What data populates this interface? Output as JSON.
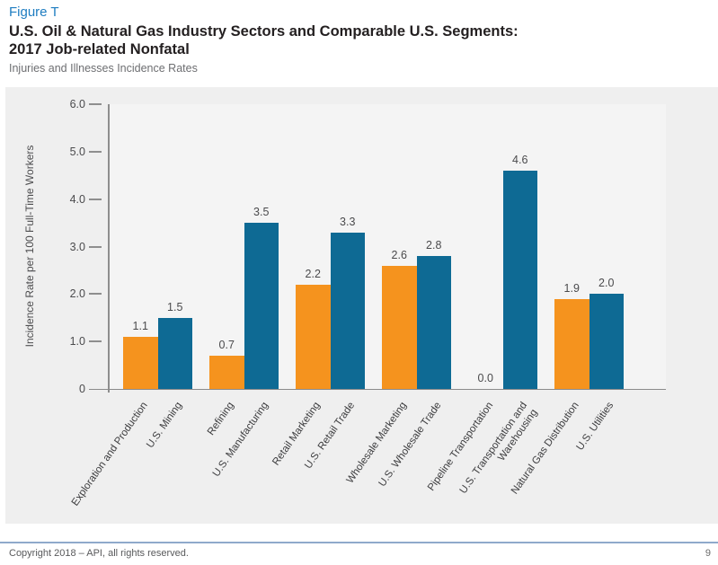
{
  "header": {
    "figure_label": "Figure T",
    "title_line1": "U.S. Oil & Natural Gas Industry Sectors and Comparable U.S. Segments:",
    "title_line2": "2017 Job-related Nonfatal",
    "subtitle": "Injuries and Illnesses Incidence Rates"
  },
  "chart_data": {
    "type": "bar",
    "title": "U.S. Oil & Natural Gas Industry Sectors and Comparable U.S. Segments: 2017 Job-related Nonfatal Injuries and Illnesses Incidence Rates",
    "xlabel": "",
    "ylabel": "Incidence Rate per 100 Full-Time Workers",
    "ylim": [
      0,
      6.0
    ],
    "ytick_labels": [
      "6.0",
      "5.0",
      "4.0",
      "3.0",
      "2.0",
      "1.0",
      "0"
    ],
    "grid": false,
    "legend": "none",
    "bar_colors": {
      "industry": "#F5931E",
      "us_segment": "#0E6A94"
    },
    "bars": [
      {
        "pair": 0,
        "series": "industry",
        "category": "Exploration and Production",
        "value": 1.1
      },
      {
        "pair": 0,
        "series": "us_segment",
        "category": "U.S. Mining",
        "value": 1.5
      },
      {
        "pair": 1,
        "series": "industry",
        "category": "Refining",
        "value": 0.7
      },
      {
        "pair": 1,
        "series": "us_segment",
        "category": "U.S. Manufacturing",
        "value": 3.5
      },
      {
        "pair": 2,
        "series": "industry",
        "category": "Retail Marketing",
        "value": 2.2
      },
      {
        "pair": 2,
        "series": "us_segment",
        "category": "U.S. Retail Trade",
        "value": 3.3
      },
      {
        "pair": 3,
        "series": "industry",
        "category": "Wholesale Marketing",
        "value": 2.6
      },
      {
        "pair": 3,
        "series": "us_segment",
        "category": "U.S. Wholesale Trade",
        "value": 2.8
      },
      {
        "pair": 4,
        "series": "industry",
        "category": "Pipeline Transportation",
        "value": 0.0
      },
      {
        "pair": 4,
        "series": "us_segment",
        "category": "U.S. Transportation and Warehousing",
        "value": 4.6,
        "tick_label": "U.S. Transportation and\nWarehousing"
      },
      {
        "pair": 5,
        "series": "industry",
        "category": "Natural Gas Distribution",
        "value": 1.9
      },
      {
        "pair": 5,
        "series": "us_segment",
        "category": "U.S. Utilities",
        "value": 2.0
      }
    ]
  },
  "footer": {
    "copyright": "Copyright 2018 – API, all rights reserved.",
    "page_number": "9"
  }
}
